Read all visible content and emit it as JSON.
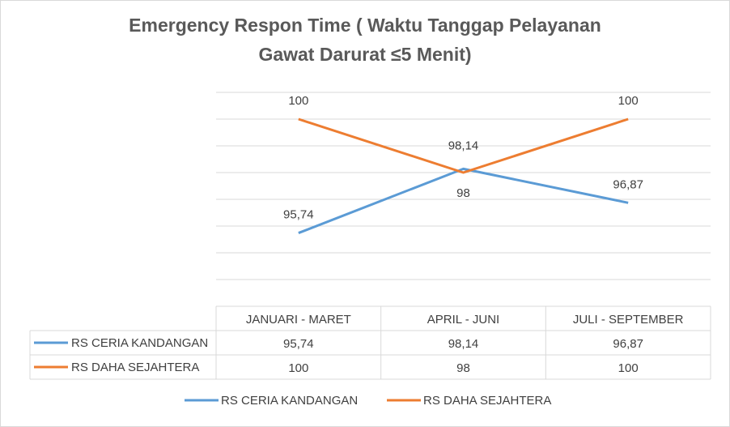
{
  "chart_data": {
    "type": "line",
    "title_line1": "Emergency Respon Time ( Waktu Tanggap Pelayanan",
    "title_line2": "Gawat Darurat ≤5 Menit)",
    "categories": [
      "JANUARI - MARET",
      "APRIL - JUNI",
      "JULI - SEPTEMBER"
    ],
    "series": [
      {
        "name": "RS CERIA KANDANGAN",
        "values": [
          95.74,
          98.14,
          96.87
        ],
        "labels": [
          "95,74",
          "98,14",
          "96,87"
        ],
        "color": "#5b9bd5"
      },
      {
        "name": "RS DAHA SEJAHTERA",
        "values": [
          100,
          98,
          100
        ],
        "labels": [
          "100",
          "98",
          "100"
        ],
        "color": "#ed7d31"
      }
    ],
    "ylim": [
      94,
      101
    ],
    "grid": true,
    "data_table": true,
    "legend_position": "bottom"
  }
}
